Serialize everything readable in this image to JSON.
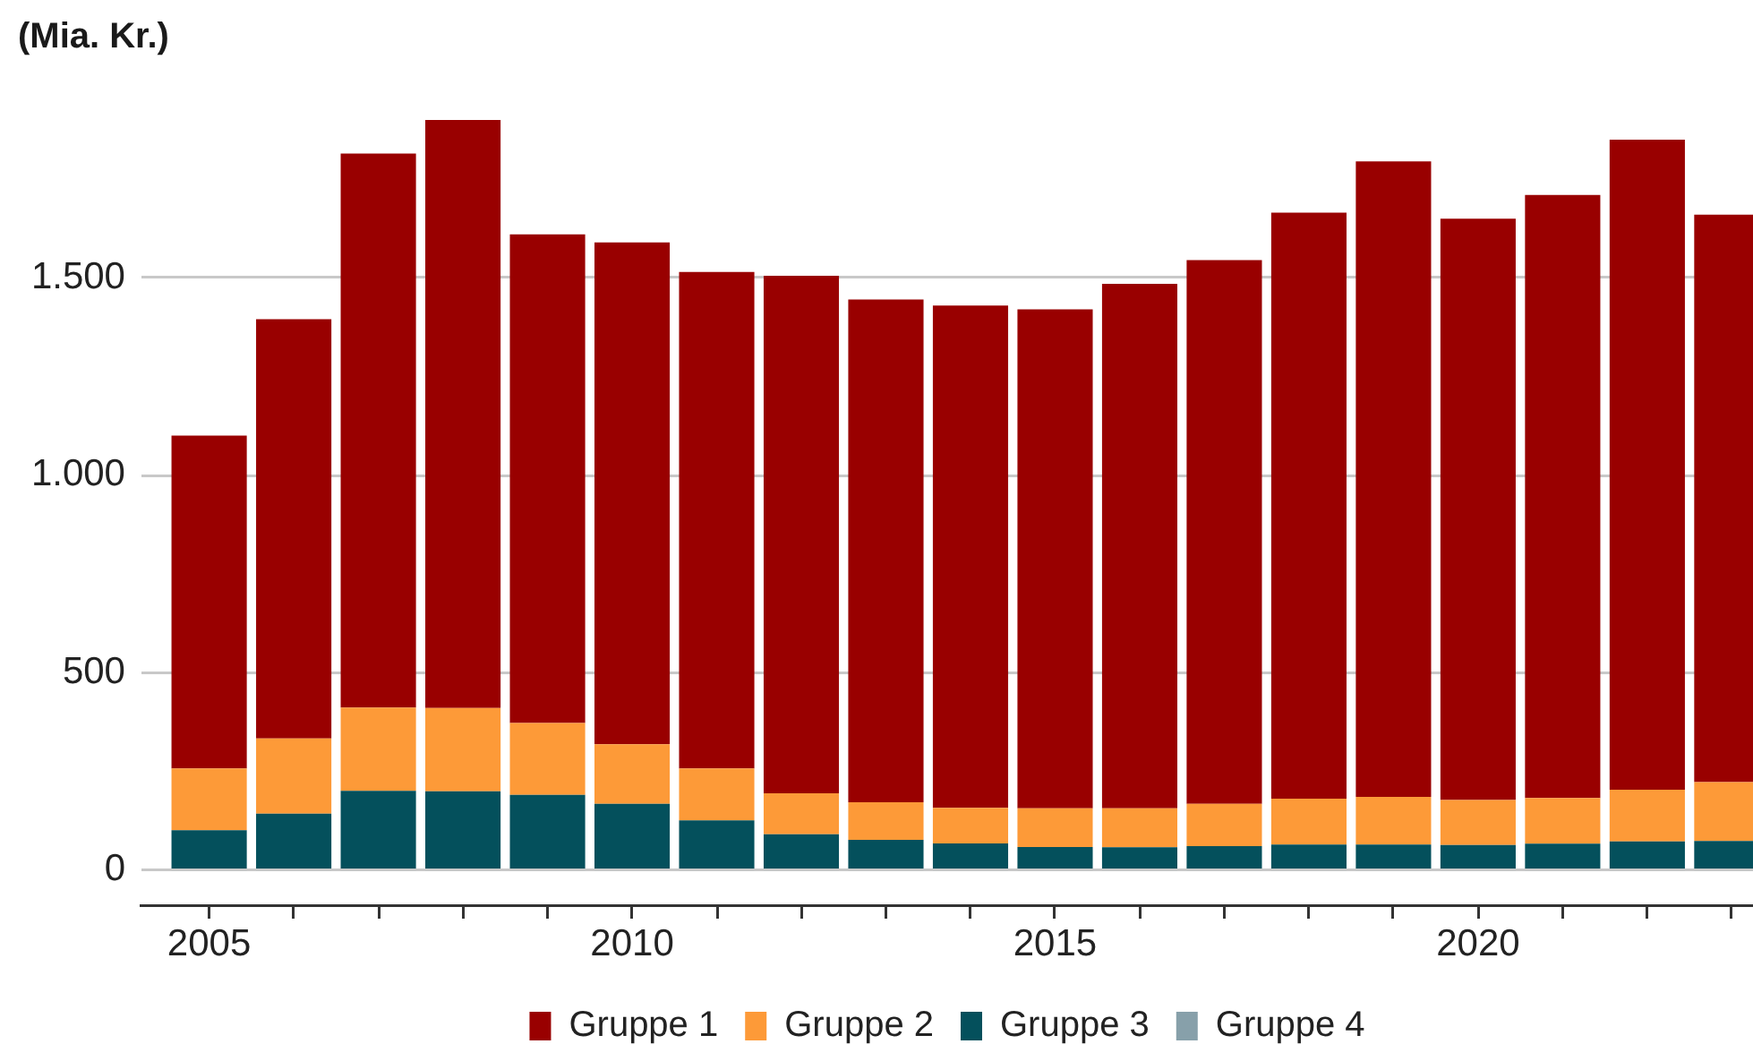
{
  "chart_data": {
    "type": "bar",
    "ylabel": "(Mia. Kr.)",
    "stacked": true,
    "x": [
      2005,
      2006,
      2007,
      2008,
      2009,
      2010,
      2011,
      2012,
      2013,
      2014,
      2015,
      2016,
      2017,
      2018,
      2019,
      2020,
      2021,
      2022,
      2023
    ],
    "series": [
      {
        "name": "Gruppe 4",
        "color": "#87a0aa",
        "values": [
          0,
          0,
          0,
          0,
          0,
          0,
          0,
          0,
          0,
          0,
          0,
          0,
          0,
          0,
          0,
          0,
          0,
          0,
          0
        ]
      },
      {
        "name": "Gruppe 3",
        "color": "#04505c",
        "values": [
          100,
          142,
          200,
          199,
          190,
          167,
          125,
          90,
          76,
          67,
          58,
          57,
          60,
          64,
          64,
          63,
          66,
          72,
          73
        ]
      },
      {
        "name": "Gruppe 2",
        "color": "#fd9a38",
        "values": [
          157,
          191,
          211,
          211,
          182,
          151,
          132,
          104,
          95,
          90,
          98,
          99,
          107,
          116,
          121,
          114,
          116,
          131,
          149
        ]
      },
      {
        "name": "Gruppe 1",
        "color": "#990000",
        "values": [
          843,
          1062,
          1404,
          1490,
          1238,
          1272,
          1258,
          1311,
          1274,
          1273,
          1264,
          1329,
          1378,
          1485,
          1610,
          1473,
          1528,
          1647,
          1438
        ]
      }
    ],
    "xlim": [
      2004.2,
      2023.25
    ],
    "xticks": [
      2005,
      {
        "value": 2006,
        "label": null
      },
      {
        "value": 2007,
        "label": null
      },
      {
        "value": 2008,
        "label": null
      },
      {
        "value": 2009,
        "label": null
      },
      2010,
      {
        "value": 2011,
        "label": null
      },
      {
        "value": 2012,
        "label": null
      },
      {
        "value": 2013,
        "label": null
      },
      {
        "value": 2014,
        "label": null
      },
      2015,
      {
        "value": 2016,
        "label": null
      },
      {
        "value": 2017,
        "label": null
      },
      {
        "value": 2018,
        "label": null
      },
      {
        "value": 2019,
        "label": null
      },
      2020,
      {
        "value": 2021,
        "label": null
      },
      {
        "value": 2022,
        "label": null
      },
      {
        "value": 2023,
        "label": null
      }
    ],
    "ylim": [
      -92,
      1900
    ],
    "yticks": [
      0,
      500,
      {
        "value": 1000,
        "label": "1.000"
      },
      {
        "value": 1500,
        "label": "1.500"
      }
    ],
    "grid": "y",
    "legend": "bottom"
  }
}
